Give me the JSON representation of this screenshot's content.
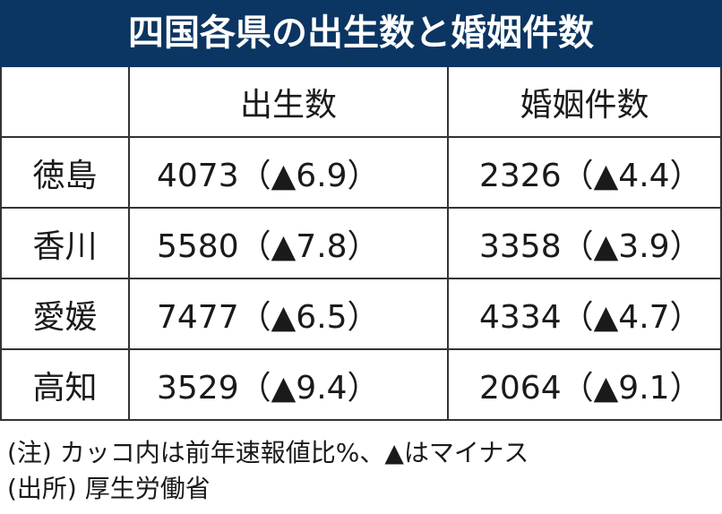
{
  "title": "四国各県の出生数と婚姻件数",
  "table": {
    "headers": [
      "",
      "出生数",
      "婚姻件数"
    ],
    "rows": [
      {
        "prefecture": "徳島",
        "births": "4073（▲6.9）",
        "marriages": "2326（▲4.4）"
      },
      {
        "prefecture": "香川",
        "births": "5580（▲7.8）",
        "marriages": "3358（▲3.9）"
      },
      {
        "prefecture": "愛媛",
        "births": "7477（▲6.5）",
        "marriages": "4334（▲4.7）"
      },
      {
        "prefecture": "高知",
        "births": "3529（▲9.4）",
        "marriages": "2064（▲9.1）"
      }
    ]
  },
  "notes": {
    "note": "(注) カッコ内は前年速報値比%、▲はマイナス",
    "source": "(出所) 厚生労働省"
  },
  "colors": {
    "title_bg": "#0b3562",
    "title_text": "#ffffff"
  }
}
